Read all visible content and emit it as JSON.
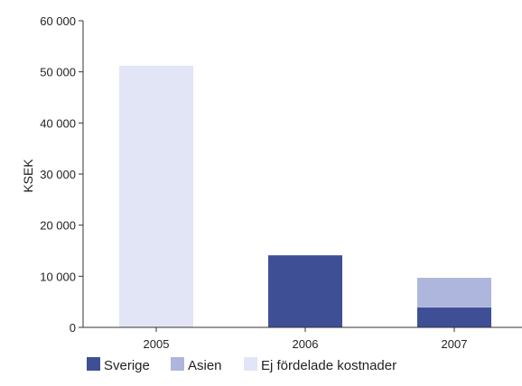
{
  "chart_data": {
    "type": "bar",
    "stacked": true,
    "categories": [
      "2005",
      "2006",
      "2007"
    ],
    "series": [
      {
        "name": "Sverige",
        "color": "#3f4f96",
        "values": [
          0,
          14100,
          3900
        ]
      },
      {
        "name": "Asien",
        "color": "#aeb6dd",
        "values": [
          0,
          0,
          5800
        ]
      },
      {
        "name": "Ej fördelade kostnader",
        "color": "#e2e5f5",
        "values": [
          51200,
          0,
          0
        ]
      }
    ],
    "ylabel": "KSEK",
    "xlabel": "",
    "ylim": [
      0,
      60000
    ],
    "yticks": [
      0,
      10000,
      20000,
      30000,
      40000,
      50000,
      60000
    ],
    "ytick_labels": [
      "0",
      "10 000",
      "20 000",
      "30 000",
      "40 000",
      "50 000",
      "60 000"
    ],
    "grid": false,
    "legend_position": "bottom-left"
  }
}
